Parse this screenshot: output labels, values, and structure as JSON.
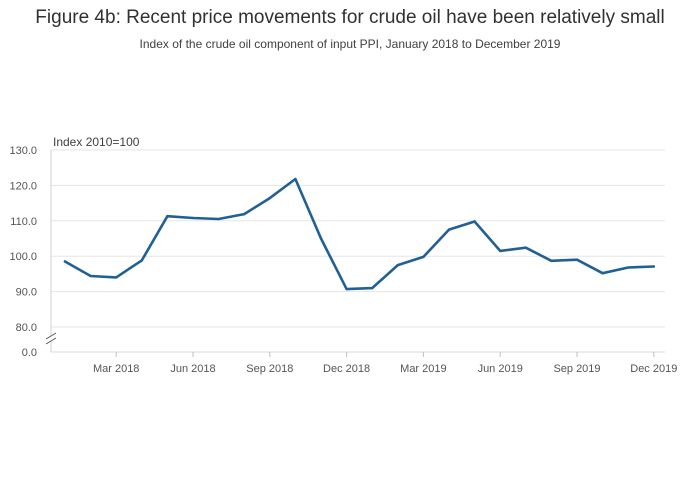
{
  "chart_data": {
    "type": "line",
    "title": "Figure 4b: Recent price movements for crude oil have been relatively small",
    "subtitle": "Index of the crude oil component of input PPI, January 2018 to December 2019",
    "ylabel": "Index 2010=100",
    "xlabel": "",
    "ylim": [
      80,
      130
    ],
    "y_ticks": [
      "130.0",
      "120.0",
      "110.0",
      "100.0",
      "90.0",
      "80.0"
    ],
    "y_break_label": "0.0",
    "x_tick_labels": [
      "Mar 2018",
      "Jun 2018",
      "Sep 2018",
      "Dec 2018",
      "Mar 2019",
      "Jun 2019",
      "Sep 2019",
      "Dec 2019"
    ],
    "x_tick_indices": [
      2,
      5,
      8,
      11,
      14,
      17,
      20,
      23
    ],
    "categories": [
      "Jan 2018",
      "Feb 2018",
      "Mar 2018",
      "Apr 2018",
      "May 2018",
      "Jun 2018",
      "Jul 2018",
      "Aug 2018",
      "Sep 2018",
      "Oct 2018",
      "Nov 2018",
      "Dec 2018",
      "Jan 2019",
      "Feb 2019",
      "Mar 2019",
      "Apr 2019",
      "May 2019",
      "Jun 2019",
      "Jul 2019",
      "Aug 2019",
      "Sep 2019",
      "Oct 2019",
      "Nov 2019",
      "Dec 2019"
    ],
    "series": [
      {
        "name": "Crude oil input PPI",
        "color": "#206095",
        "values": [
          98.5,
          94.4,
          94.0,
          98.8,
          111.3,
          110.8,
          110.5,
          111.9,
          116.4,
          121.8,
          105.0,
          90.7,
          91.0,
          97.5,
          99.8,
          107.5,
          109.8,
          101.5,
          102.4,
          98.7,
          99.0,
          95.2,
          96.8,
          97.1
        ]
      }
    ],
    "grid": true
  }
}
